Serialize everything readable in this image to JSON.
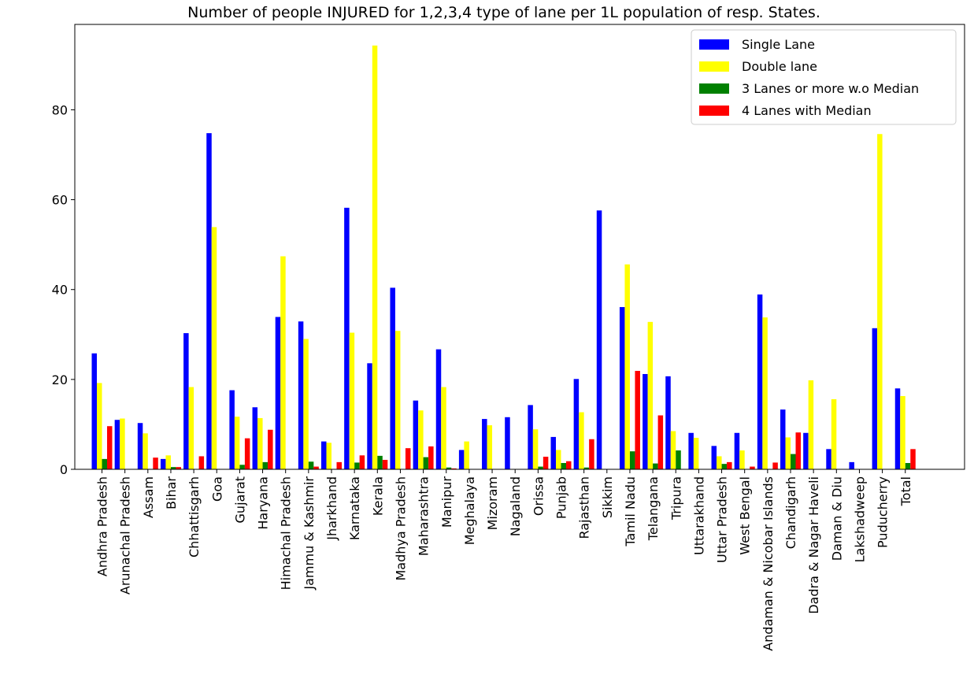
{
  "chart_data": {
    "type": "bar",
    "title": "Number of people INJURED for 1,2,3,4 type of lane per 1L population of resp. States.",
    "xlabel": "",
    "ylabel": "",
    "ylim": [
      0,
      99
    ],
    "yticks": [
      0,
      20,
      40,
      60,
      80
    ],
    "grid": false,
    "legend_position": "top-right",
    "categories": [
      "Andhra Pradesh",
      "Arunachal Pradesh",
      "Assam",
      "Bihar",
      "Chhattisgarh",
      "Goa",
      "Gujarat",
      "Haryana",
      "Himachal Pradesh",
      "Jammu & Kashmir",
      "Jharkhand",
      "Karnataka",
      "Kerala",
      "Madhya Pradesh",
      "Maharashtra",
      "Manipur",
      "Meghalaya",
      "Mizoram",
      "Nagaland",
      "Orissa",
      "Punjab",
      "Rajasthan",
      "Sikkim",
      "Tamil Nadu",
      "Telangana",
      "Tripura",
      "Uttarakhand",
      "Uttar Pradesh",
      "West Bengal",
      "Andaman & Nicobar Islands",
      "Chandigarh",
      "Dadra & Nagar Haveli",
      "Daman & Diu",
      "Lakshadweep",
      "Puducherry",
      "Total"
    ],
    "series": [
      {
        "name": "Single Lane",
        "color": "#0000ff",
        "values": [
          25.8,
          11.0,
          10.3,
          2.3,
          30.3,
          74.8,
          17.6,
          13.8,
          33.9,
          32.9,
          6.2,
          58.2,
          23.6,
          40.4,
          15.3,
          26.7,
          4.3,
          11.2,
          11.6,
          14.3,
          7.2,
          20.1,
          57.6,
          36.1,
          21.2,
          20.7,
          8.1,
          5.2,
          8.1,
          38.9,
          13.3,
          8.1,
          4.5,
          1.6,
          31.4,
          18.0
        ]
      },
      {
        "name": "Double lane",
        "color": "#ffff00",
        "values": [
          19.2,
          11.3,
          8.0,
          3.1,
          18.3,
          53.9,
          11.7,
          11.4,
          47.4,
          29.0,
          5.9,
          30.4,
          94.3,
          30.8,
          13.1,
          18.3,
          6.2,
          9.8,
          0.0,
          8.9,
          4.3,
          12.7,
          0.0,
          45.6,
          32.8,
          8.5,
          7.0,
          2.9,
          4.2,
          33.8,
          7.1,
          19.8,
          15.6,
          0.0,
          74.6,
          16.3
        ]
      },
      {
        "name": "3 Lanes or more w.o Median",
        "color": "#008000",
        "values": [
          2.3,
          0.0,
          0.0,
          0.5,
          0.0,
          0.0,
          1.0,
          1.6,
          0.0,
          1.7,
          0.0,
          1.5,
          3.0,
          0.0,
          2.7,
          0.4,
          0.0,
          0.0,
          0.0,
          0.6,
          1.4,
          0.4,
          0.0,
          4.0,
          1.3,
          4.2,
          0.0,
          1.2,
          0.0,
          0.0,
          3.4,
          0.0,
          0.0,
          0.0,
          0.0,
          1.4
        ]
      },
      {
        "name": "4 Lanes with Median",
        "color": "#ff0000",
        "values": [
          9.6,
          0.0,
          2.6,
          0.5,
          2.9,
          0.0,
          6.9,
          8.8,
          0.0,
          0.6,
          1.6,
          3.1,
          2.1,
          4.7,
          5.1,
          0.2,
          0.0,
          0.0,
          0.0,
          2.8,
          1.8,
          6.7,
          0.0,
          21.9,
          12.0,
          0.0,
          0.0,
          1.6,
          0.6,
          1.5,
          8.2,
          0.0,
          0.0,
          0.0,
          0.0,
          4.5
        ]
      }
    ]
  }
}
